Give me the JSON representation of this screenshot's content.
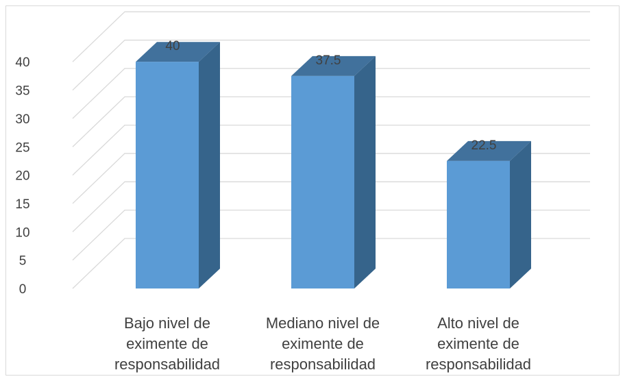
{
  "chart_data": {
    "type": "bar",
    "categories": [
      [
        "Bajo nivel de",
        "eximente de",
        "responsabilidad"
      ],
      [
        "Mediano nivel de",
        "eximente de",
        "responsabilidad"
      ],
      [
        "Alto  nivel de",
        "eximente de",
        "responsabilidad"
      ]
    ],
    "values": [
      40,
      37.5,
      22.5
    ],
    "data_labels": [
      "40",
      "37.5",
      "22.5"
    ],
    "yticks": [
      0,
      5,
      10,
      15,
      20,
      25,
      30,
      35,
      40
    ],
    "ylim": [
      0,
      45
    ],
    "grid": true,
    "three_d": true,
    "legend": "none",
    "colors": {
      "bar_front": "#5b9bd5",
      "bar_side": "#36648b",
      "bar_top": "#41719c",
      "gridline": "#d9d9d9",
      "text": "#404040"
    }
  }
}
